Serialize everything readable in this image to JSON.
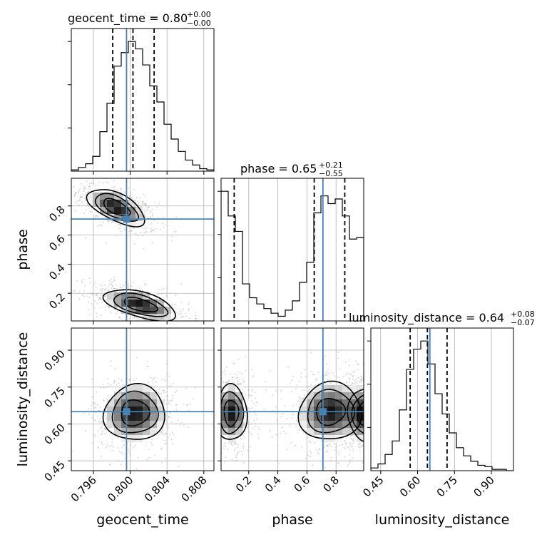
{
  "chart_data": {
    "type": "corner",
    "parameters": [
      "geocent_time",
      "phase",
      "luminosity_distance"
    ],
    "truths": {
      "geocent_time": 0.7996,
      "phase": 0.71,
      "luminosity_distance": 0.65
    },
    "titles": {
      "geocent_time": {
        "name": "geocent_time",
        "median": "0.80",
        "plus": "+0.00",
        "minus": "−0.00"
      },
      "phase": {
        "name": "phase",
        "median": "0.65",
        "plus": "+0.21",
        "minus": "−0.55"
      },
      "luminosity_distance": {
        "name": "luminosity_distance",
        "median": "0.64",
        "plus": "+0.08",
        "minus": "−0.07"
      }
    },
    "ranges": {
      "geocent_time": [
        0.7936,
        0.8091
      ],
      "phase": [
        0.01,
        0.99
      ],
      "luminosity_distance": [
        0.41,
        0.99
      ]
    },
    "ticks": {
      "geocent_time": [
        "0.796",
        "0.800",
        "0.804",
        "0.808"
      ],
      "phase": [
        "0.2",
        "0.4",
        "0.6",
        "0.8"
      ],
      "luminosity_distance": [
        "0.45",
        "0.60",
        "0.75",
        "0.90"
      ]
    },
    "histograms": {
      "geocent_time": {
        "edges_start": 0.7936,
        "bin_width": 0.000775,
        "counts": [
          1,
          3,
          6,
          12,
          32,
          55,
          85,
          96,
          105,
          99,
          86,
          69,
          56,
          38,
          26,
          16,
          9,
          5,
          2,
          1
        ],
        "quantiles": [
          0.7981,
          0.8003,
          0.8026
        ]
      },
      "phase": {
        "edges_start": 0.01,
        "bin_width": 0.049,
        "counts": [
          84,
          68,
          58,
          24,
          15,
          11,
          8,
          5,
          3,
          7,
          13,
          25,
          38,
          70,
          81,
          76,
          79,
          68,
          53,
          54
        ],
        "quantiles": [
          0.1,
          0.65,
          0.86
        ]
      },
      "luminosity_distance": {
        "edges_start": 0.41,
        "bin_width": 0.029,
        "counts": [
          2,
          5,
          12,
          22,
          45,
          75,
          90,
          96,
          79,
          57,
          42,
          28,
          17,
          11,
          7,
          4,
          3,
          1,
          1,
          0
        ],
        "quantiles": [
          0.57,
          0.64,
          0.72
        ]
      }
    },
    "contours_2d": [
      {
        "x": "geocent_time",
        "y": "phase",
        "modes": [
          {
            "cx": 0.7985,
            "cy": 0.79,
            "sx": 0.0016,
            "sy": 0.065,
            "rho": -0.6,
            "rx": 0.8,
            "ry": 0.1
          },
          {
            "cx": 0.8011,
            "cy": 0.12,
            "sx": 0.002,
            "sy": 0.055,
            "rho": -0.55,
            "rx": 0.55,
            "ry": 0.16
          }
        ]
      },
      {
        "x": "geocent_time",
        "y": "luminosity_distance",
        "modes": [
          {
            "cx": 0.8005,
            "cy": 0.645,
            "sx": 0.0017,
            "sy": 0.058,
            "rho": 0.05,
            "rx": 1.0,
            "ry": 0.14
          }
        ]
      },
      {
        "x": "phase",
        "y": "luminosity_distance",
        "modes": [
          {
            "cx": 0.08,
            "cy": 0.645,
            "sx": 0.055,
            "sy": 0.058,
            "rho": 0.0,
            "rx": 0.5,
            "ry": 0.12
          },
          {
            "cx": 0.76,
            "cy": 0.65,
            "sx": 0.11,
            "sy": 0.06,
            "rho": 0.05,
            "rx": 0.5,
            "ry": 0.14
          },
          {
            "cx": 1.0,
            "cy": 0.64,
            "sx": 0.06,
            "sy": 0.055,
            "rho": 0.0,
            "rx": 0.3,
            "ry": 0.1
          }
        ]
      }
    ],
    "colors": {
      "truth": "#4682b4",
      "contour": "#000000",
      "grid": "#b0b0b0"
    },
    "grid": true
  }
}
